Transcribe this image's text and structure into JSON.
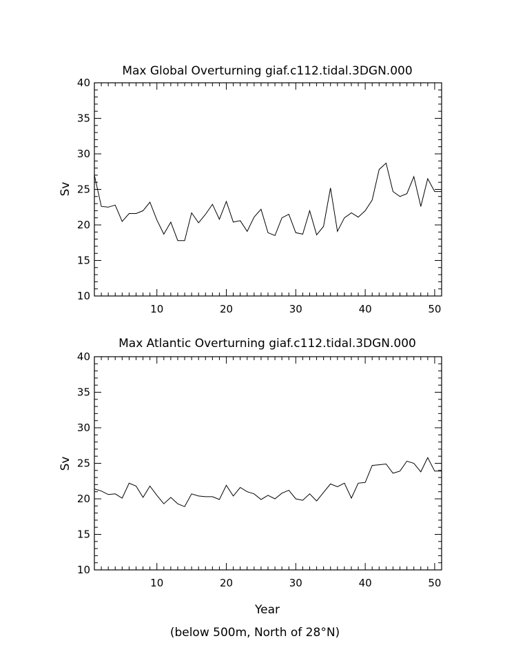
{
  "figure": {
    "xlabel": "Year",
    "caption": "(below 500m, North of 28°N)"
  },
  "chart_data": [
    {
      "type": "line",
      "title": "Max Global Overturning giaf.c112.tidal.3DGN.000",
      "xlabel": "",
      "ylabel": "Sv",
      "xlim": [
        1,
        51
      ],
      "ylim": [
        10,
        40
      ],
      "xticks": [
        10,
        20,
        30,
        40,
        50
      ],
      "yticks": [
        10,
        15,
        20,
        25,
        30,
        35,
        40
      ],
      "grid": false,
      "series": [
        {
          "x": [
            1,
            2,
            3,
            4,
            5,
            6,
            7,
            8,
            9,
            10,
            11,
            12,
            13,
            14,
            15,
            16,
            17,
            18,
            19,
            20,
            21,
            22,
            23,
            24,
            25,
            26,
            27,
            28,
            29,
            30,
            31,
            32,
            33,
            34,
            35,
            36,
            37,
            38,
            39,
            40,
            41,
            42,
            43,
            44,
            45,
            46,
            47,
            48,
            49,
            50,
            51
          ],
          "values": [
            27.0,
            22.6,
            22.5,
            22.8,
            20.5,
            21.6,
            21.6,
            22.0,
            23.2,
            20.7,
            18.7,
            20.4,
            17.8,
            17.8,
            21.7,
            20.3,
            21.5,
            22.9,
            20.8,
            23.3,
            20.4,
            20.6,
            19.1,
            21.1,
            22.2,
            18.9,
            18.5,
            21.0,
            21.5,
            18.9,
            18.7,
            22.0,
            18.6,
            19.8,
            25.2,
            19.1,
            21.0,
            21.7,
            21.1,
            22.0,
            23.5,
            27.8,
            28.7,
            24.7,
            24.0,
            24.4,
            26.8,
            22.6,
            26.5,
            24.7,
            24.7
          ]
        }
      ]
    },
    {
      "type": "line",
      "title": "Max Atlantic Overturning giaf.c112.tidal.3DGN.000",
      "xlabel": "Year",
      "ylabel": "Sv",
      "xlim": [
        1,
        51
      ],
      "ylim": [
        10,
        40
      ],
      "xticks": [
        10,
        20,
        30,
        40,
        50
      ],
      "yticks": [
        10,
        15,
        20,
        25,
        30,
        35,
        40
      ],
      "grid": false,
      "series": [
        {
          "x": [
            1,
            2,
            3,
            4,
            5,
            6,
            7,
            8,
            9,
            10,
            11,
            12,
            13,
            14,
            15,
            16,
            17,
            18,
            19,
            20,
            21,
            22,
            23,
            24,
            25,
            26,
            27,
            28,
            29,
            30,
            31,
            32,
            33,
            34,
            35,
            36,
            37,
            38,
            39,
            40,
            41,
            42,
            43,
            44,
            45,
            46,
            47,
            48,
            49,
            50,
            51
          ],
          "values": [
            21.4,
            21.1,
            20.6,
            20.7,
            20.1,
            22.2,
            21.8,
            20.2,
            21.8,
            20.5,
            19.3,
            20.2,
            19.3,
            18.9,
            20.7,
            20.4,
            20.3,
            20.3,
            19.9,
            21.9,
            20.4,
            21.6,
            21.0,
            20.7,
            19.9,
            20.5,
            20.0,
            20.8,
            21.2,
            20.0,
            19.8,
            20.7,
            19.7,
            20.9,
            22.1,
            21.7,
            22.2,
            20.1,
            22.2,
            22.3,
            24.7,
            24.8,
            24.9,
            23.6,
            23.9,
            25.3,
            25.0,
            23.8,
            25.8,
            23.9,
            23.9
          ]
        }
      ]
    }
  ]
}
